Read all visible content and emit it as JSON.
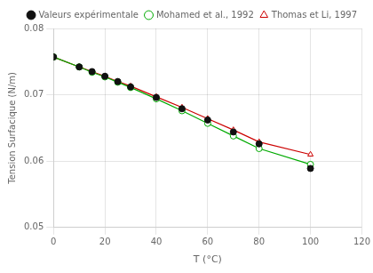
{
  "chart_data": {
    "type": "line",
    "xlabel": "T (°C)",
    "ylabel": "Tension Surfacique (N/m)",
    "x": [
      0,
      10,
      15,
      20,
      25,
      30,
      40,
      50,
      60,
      70,
      80,
      100
    ],
    "series": [
      {
        "name": "Valeurs expérimentale",
        "color": "#111111",
        "marker": "circle",
        "line_style": "none",
        "values": [
          0.0757,
          0.0742,
          0.0735,
          0.0728,
          0.072,
          0.0712,
          0.0696,
          0.0679,
          0.0662,
          0.0644,
          0.0626,
          0.0589
        ]
      },
      {
        "name": "Mohamed et al., 1992",
        "color": "#00aa00",
        "marker": "open_circle",
        "line_style": "solid",
        "values": [
          0.0757,
          0.0742,
          0.0734,
          0.0727,
          0.0719,
          0.0711,
          0.0694,
          0.0676,
          0.0657,
          0.0638,
          0.0619,
          0.0595
        ]
      },
      {
        "name": "Thomas et Li, 1997",
        "color": "#cc0000",
        "marker": "open_triangle",
        "line_style": "solid",
        "values": [
          0.0757,
          0.0742,
          0.0735,
          0.0728,
          0.072,
          0.0713,
          0.0697,
          0.0681,
          0.0664,
          0.0647,
          0.0629,
          0.061
        ]
      }
    ],
    "xlim": [
      0,
      120
    ],
    "ylim": [
      0.05,
      0.08
    ],
    "xticks": [
      0,
      20,
      40,
      60,
      80,
      100,
      120
    ],
    "yticks": [
      0.05,
      0.06,
      0.07,
      0.08
    ],
    "grid": true,
    "legend": "upper right"
  }
}
